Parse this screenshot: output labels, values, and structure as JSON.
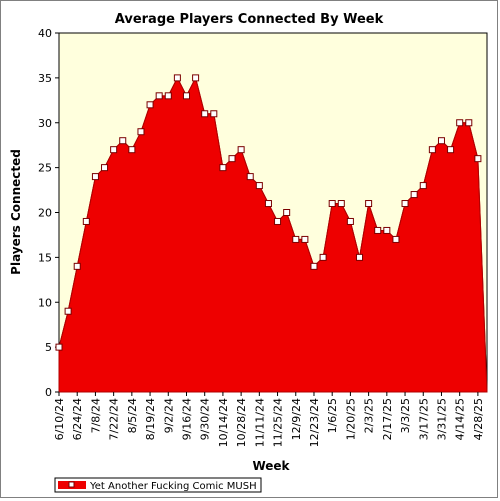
{
  "chart_data": {
    "type": "area",
    "title": "Average Players Connected By Week",
    "xlabel": "Week",
    "ylabel": "Players Connected",
    "ylim": [
      0,
      40
    ],
    "yticks": [
      0,
      5,
      10,
      15,
      20,
      25,
      30,
      35,
      40
    ],
    "grid": false,
    "legend_position": "bottom-left",
    "colors": {
      "area_fill": "#ee0000",
      "line": "#b00000",
      "marker_fill": "#ffffff",
      "marker_stroke": "#7a0000",
      "plot_background": "#ffffdd"
    },
    "x_tick_labels": [
      "6/10/24",
      "6/24/24",
      "7/8/24",
      "7/22/24",
      "8/5/24",
      "8/19/24",
      "9/2/24",
      "9/16/24",
      "9/30/24",
      "10/14/24",
      "10/28/24",
      "11/11/24",
      "11/25/24",
      "12/9/24",
      "12/23/24",
      "1/6/25",
      "1/20/25",
      "2/3/25",
      "2/17/25",
      "3/3/25",
      "3/17/25",
      "3/31/25",
      "4/14/25",
      "4/28/25"
    ],
    "x": [
      "6/10/24",
      "6/17/24",
      "6/24/24",
      "7/1/24",
      "7/8/24",
      "7/15/24",
      "7/22/24",
      "7/29/24",
      "8/5/24",
      "8/12/24",
      "8/19/24",
      "8/26/24",
      "9/2/24",
      "9/9/24",
      "9/16/24",
      "9/23/24",
      "9/30/24",
      "10/7/24",
      "10/14/24",
      "10/21/24",
      "10/28/24",
      "11/4/24",
      "11/11/24",
      "11/18/24",
      "11/25/24",
      "12/2/24",
      "12/9/24",
      "12/16/24",
      "12/23/24",
      "12/30/24",
      "1/6/25",
      "1/13/25",
      "1/20/25",
      "1/27/25",
      "2/3/25",
      "2/10/25",
      "2/17/25",
      "2/24/25",
      "3/3/25",
      "3/10/25",
      "3/17/25",
      "3/24/25",
      "3/31/25",
      "4/7/25",
      "4/14/25",
      "4/21/25",
      "4/28/25",
      "5/5/25"
    ],
    "series": [
      {
        "name": "Yet Another Fucking Comic MUSH",
        "values": [
          5,
          9,
          14,
          19,
          24,
          25,
          27,
          28,
          27,
          29,
          32,
          33,
          33,
          35,
          33,
          35,
          31,
          31,
          25,
          26,
          27,
          24,
          23,
          21,
          19,
          20,
          17,
          17,
          14,
          15,
          21,
          21,
          19,
          15,
          21,
          18,
          18,
          17,
          21,
          22,
          23,
          27,
          28,
          27,
          30,
          30,
          26,
          0
        ]
      }
    ]
  }
}
